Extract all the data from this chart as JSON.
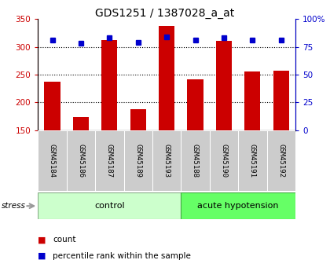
{
  "title": "GDS1251 / 1387028_a_at",
  "samples": [
    "GSM45184",
    "GSM45186",
    "GSM45187",
    "GSM45189",
    "GSM45193",
    "GSM45188",
    "GSM45190",
    "GSM45191",
    "GSM45192"
  ],
  "counts": [
    237,
    174,
    312,
    187,
    338,
    241,
    311,
    255,
    257
  ],
  "percentiles": [
    81,
    78,
    83,
    79,
    84,
    81,
    83,
    81,
    81
  ],
  "group_labels": [
    "control",
    "acute hypotension"
  ],
  "ctrl_color": "#ccffcc",
  "ah_color": "#66ff66",
  "bar_color": "#cc0000",
  "dot_color": "#0000cc",
  "ylim_left": [
    150,
    350
  ],
  "ylim_right": [
    0,
    100
  ],
  "yticks_left": [
    150,
    200,
    250,
    300,
    350
  ],
  "yticks_right": [
    0,
    25,
    50,
    75,
    100
  ],
  "ytick_labels_right": [
    "0",
    "25",
    "50",
    "75",
    "100%"
  ],
  "grid_values": [
    200,
    250,
    300
  ],
  "bar_color_hex": "#cc0000",
  "dot_color_hex": "#0000cc",
  "stress_label": "stress",
  "legend_count_label": "count",
  "legend_pct_label": "percentile rank within the sample",
  "n_control": 5,
  "n_total": 9,
  "bar_width": 0.55
}
